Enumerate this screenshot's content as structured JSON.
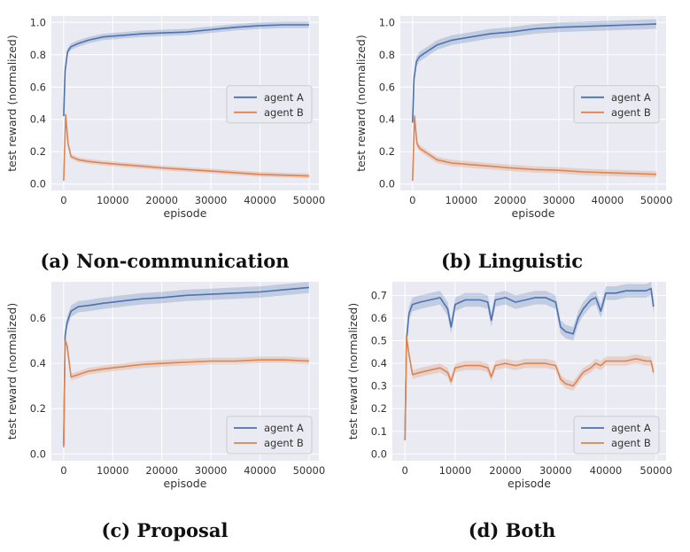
{
  "chart_data": [
    {
      "type": "line",
      "caption": "(a) Non-communication",
      "xlabel": "episode",
      "ylabel": "test reward (normalized)",
      "xlim": [
        -2500,
        52000
      ],
      "ylim": [
        -0.04,
        1.04
      ],
      "xticks": [
        0,
        10000,
        20000,
        30000,
        40000,
        50000
      ],
      "yticks": [
        0.0,
        0.2,
        0.4,
        0.6,
        0.8,
        1.0
      ],
      "ytick_labels": [
        "0.0",
        "0.2",
        "0.4",
        "0.6",
        "0.8",
        "1.0"
      ],
      "grid": true,
      "legend": "center-right",
      "series": [
        {
          "name": "agent A",
          "color": "#4c72b0",
          "x": [
            0,
            300,
            800,
            1500,
            3000,
            5000,
            8000,
            12000,
            16000,
            20000,
            25000,
            30000,
            35000,
            40000,
            45000,
            50000
          ],
          "y": [
            0.42,
            0.7,
            0.82,
            0.85,
            0.87,
            0.89,
            0.91,
            0.92,
            0.93,
            0.935,
            0.94,
            0.955,
            0.97,
            0.98,
            0.985,
            0.985
          ],
          "band": 0.02
        },
        {
          "name": "agent B",
          "color": "#dd8452",
          "x": [
            0,
            400,
            900,
            1500,
            3000,
            5000,
            8000,
            12000,
            16000,
            20000,
            25000,
            30000,
            35000,
            40000,
            45000,
            50000
          ],
          "y": [
            0.02,
            0.43,
            0.25,
            0.17,
            0.15,
            0.14,
            0.13,
            0.12,
            0.11,
            0.1,
            0.09,
            0.08,
            0.07,
            0.06,
            0.055,
            0.05
          ],
          "band": 0.015
        }
      ]
    },
    {
      "type": "line",
      "caption": "(b) Linguistic",
      "xlabel": "episode",
      "ylabel": "test reward (normalized)",
      "xlim": [
        -2500,
        52000
      ],
      "ylim": [
        -0.04,
        1.04
      ],
      "xticks": [
        0,
        10000,
        20000,
        30000,
        40000,
        50000
      ],
      "yticks": [
        0.0,
        0.2,
        0.4,
        0.6,
        0.8,
        1.0
      ],
      "ytick_labels": [
        "0.0",
        "0.2",
        "0.4",
        "0.6",
        "0.8",
        "1.0"
      ],
      "grid": true,
      "legend": "center-right",
      "series": [
        {
          "name": "agent A",
          "color": "#4c72b0",
          "x": [
            0,
            300,
            800,
            1500,
            3000,
            5000,
            8000,
            12000,
            16000,
            20000,
            25000,
            30000,
            35000,
            40000,
            45000,
            50000
          ],
          "y": [
            0.38,
            0.65,
            0.76,
            0.79,
            0.82,
            0.86,
            0.89,
            0.91,
            0.93,
            0.94,
            0.96,
            0.97,
            0.975,
            0.98,
            0.985,
            0.99
          ],
          "band": 0.03
        },
        {
          "name": "agent B",
          "color": "#dd8452",
          "x": [
            0,
            400,
            900,
            1500,
            3000,
            5000,
            8000,
            12000,
            16000,
            20000,
            25000,
            30000,
            35000,
            40000,
            45000,
            50000
          ],
          "y": [
            0.02,
            0.42,
            0.25,
            0.22,
            0.19,
            0.15,
            0.13,
            0.12,
            0.11,
            0.1,
            0.09,
            0.085,
            0.075,
            0.07,
            0.065,
            0.06
          ],
          "band": 0.02
        }
      ]
    },
    {
      "type": "line",
      "caption": "(c) Proposal",
      "xlabel": "episode",
      "ylabel": "test reward (normalized)",
      "xlim": [
        -2500,
        52000
      ],
      "ylim": [
        -0.03,
        0.76
      ],
      "xticks": [
        0,
        10000,
        20000,
        30000,
        40000,
        50000
      ],
      "yticks": [
        0.0,
        0.2,
        0.4,
        0.6
      ],
      "ytick_labels": [
        "0.0",
        "0.2",
        "0.4",
        "0.6"
      ],
      "grid": true,
      "legend": "bottom-right",
      "series": [
        {
          "name": "agent A",
          "color": "#4c72b0",
          "x": [
            0,
            300,
            700,
            1500,
            3000,
            5000,
            8000,
            12000,
            16000,
            20000,
            25000,
            30000,
            35000,
            40000,
            45000,
            50000
          ],
          "y": [
            0.04,
            0.52,
            0.58,
            0.63,
            0.65,
            0.655,
            0.665,
            0.675,
            0.685,
            0.69,
            0.7,
            0.705,
            0.71,
            0.715,
            0.725,
            0.735
          ],
          "band": 0.025
        },
        {
          "name": "agent B",
          "color": "#dd8452",
          "x": [
            0,
            300,
            700,
            1500,
            3000,
            5000,
            8000,
            12000,
            16000,
            20000,
            25000,
            30000,
            35000,
            40000,
            45000,
            50000
          ],
          "y": [
            0.03,
            0.5,
            0.48,
            0.34,
            0.35,
            0.365,
            0.375,
            0.385,
            0.395,
            0.4,
            0.405,
            0.41,
            0.41,
            0.415,
            0.415,
            0.41
          ],
          "band": 0.015
        }
      ]
    },
    {
      "type": "line",
      "caption": "(d) Both",
      "xlabel": "episode",
      "ylabel": "test reward (normalized)",
      "xlim": [
        -2500,
        52000
      ],
      "ylim": [
        -0.03,
        0.76
      ],
      "xticks": [
        0,
        10000,
        20000,
        30000,
        40000,
        50000
      ],
      "yticks": [
        0.0,
        0.1,
        0.2,
        0.3,
        0.4,
        0.5,
        0.6,
        0.7
      ],
      "ytick_labels": [
        "0.0",
        "0.1",
        "0.2",
        "0.3",
        "0.4",
        "0.5",
        "0.6",
        "0.7"
      ],
      "grid": true,
      "legend": "bottom-right",
      "series": [
        {
          "name": "agent A",
          "color": "#4c72b0",
          "x": [
            0,
            300,
            800,
            1500,
            3000,
            5000,
            7000,
            8500,
            9200,
            10000,
            12000,
            15000,
            16500,
            17200,
            18000,
            20000,
            22000,
            24000,
            26000,
            28000,
            30000,
            31000,
            32000,
            33500,
            34500,
            35500,
            37000,
            38000,
            39000,
            40000,
            42000,
            44000,
            46000,
            48000,
            49000,
            49500
          ],
          "y": [
            0.06,
            0.5,
            0.62,
            0.66,
            0.67,
            0.68,
            0.69,
            0.64,
            0.56,
            0.66,
            0.68,
            0.68,
            0.67,
            0.59,
            0.68,
            0.69,
            0.67,
            0.68,
            0.69,
            0.69,
            0.67,
            0.56,
            0.54,
            0.53,
            0.6,
            0.64,
            0.68,
            0.69,
            0.63,
            0.71,
            0.71,
            0.72,
            0.72,
            0.72,
            0.73,
            0.65
          ],
          "band": 0.03
        },
        {
          "name": "agent B",
          "color": "#dd8452",
          "x": [
            0,
            300,
            800,
            1500,
            3000,
            5000,
            7000,
            8500,
            9200,
            10000,
            12000,
            15000,
            16500,
            17200,
            18000,
            20000,
            22000,
            24000,
            26000,
            28000,
            30000,
            31000,
            32000,
            33500,
            34500,
            35500,
            37000,
            38000,
            39000,
            40000,
            42000,
            44000,
            46000,
            48000,
            49000,
            49500
          ],
          "y": [
            0.06,
            0.52,
            0.44,
            0.35,
            0.36,
            0.37,
            0.38,
            0.36,
            0.32,
            0.38,
            0.39,
            0.39,
            0.38,
            0.34,
            0.39,
            0.4,
            0.39,
            0.4,
            0.4,
            0.4,
            0.39,
            0.33,
            0.31,
            0.3,
            0.33,
            0.36,
            0.38,
            0.4,
            0.39,
            0.41,
            0.41,
            0.41,
            0.42,
            0.41,
            0.41,
            0.36
          ],
          "band": 0.02
        }
      ]
    }
  ]
}
